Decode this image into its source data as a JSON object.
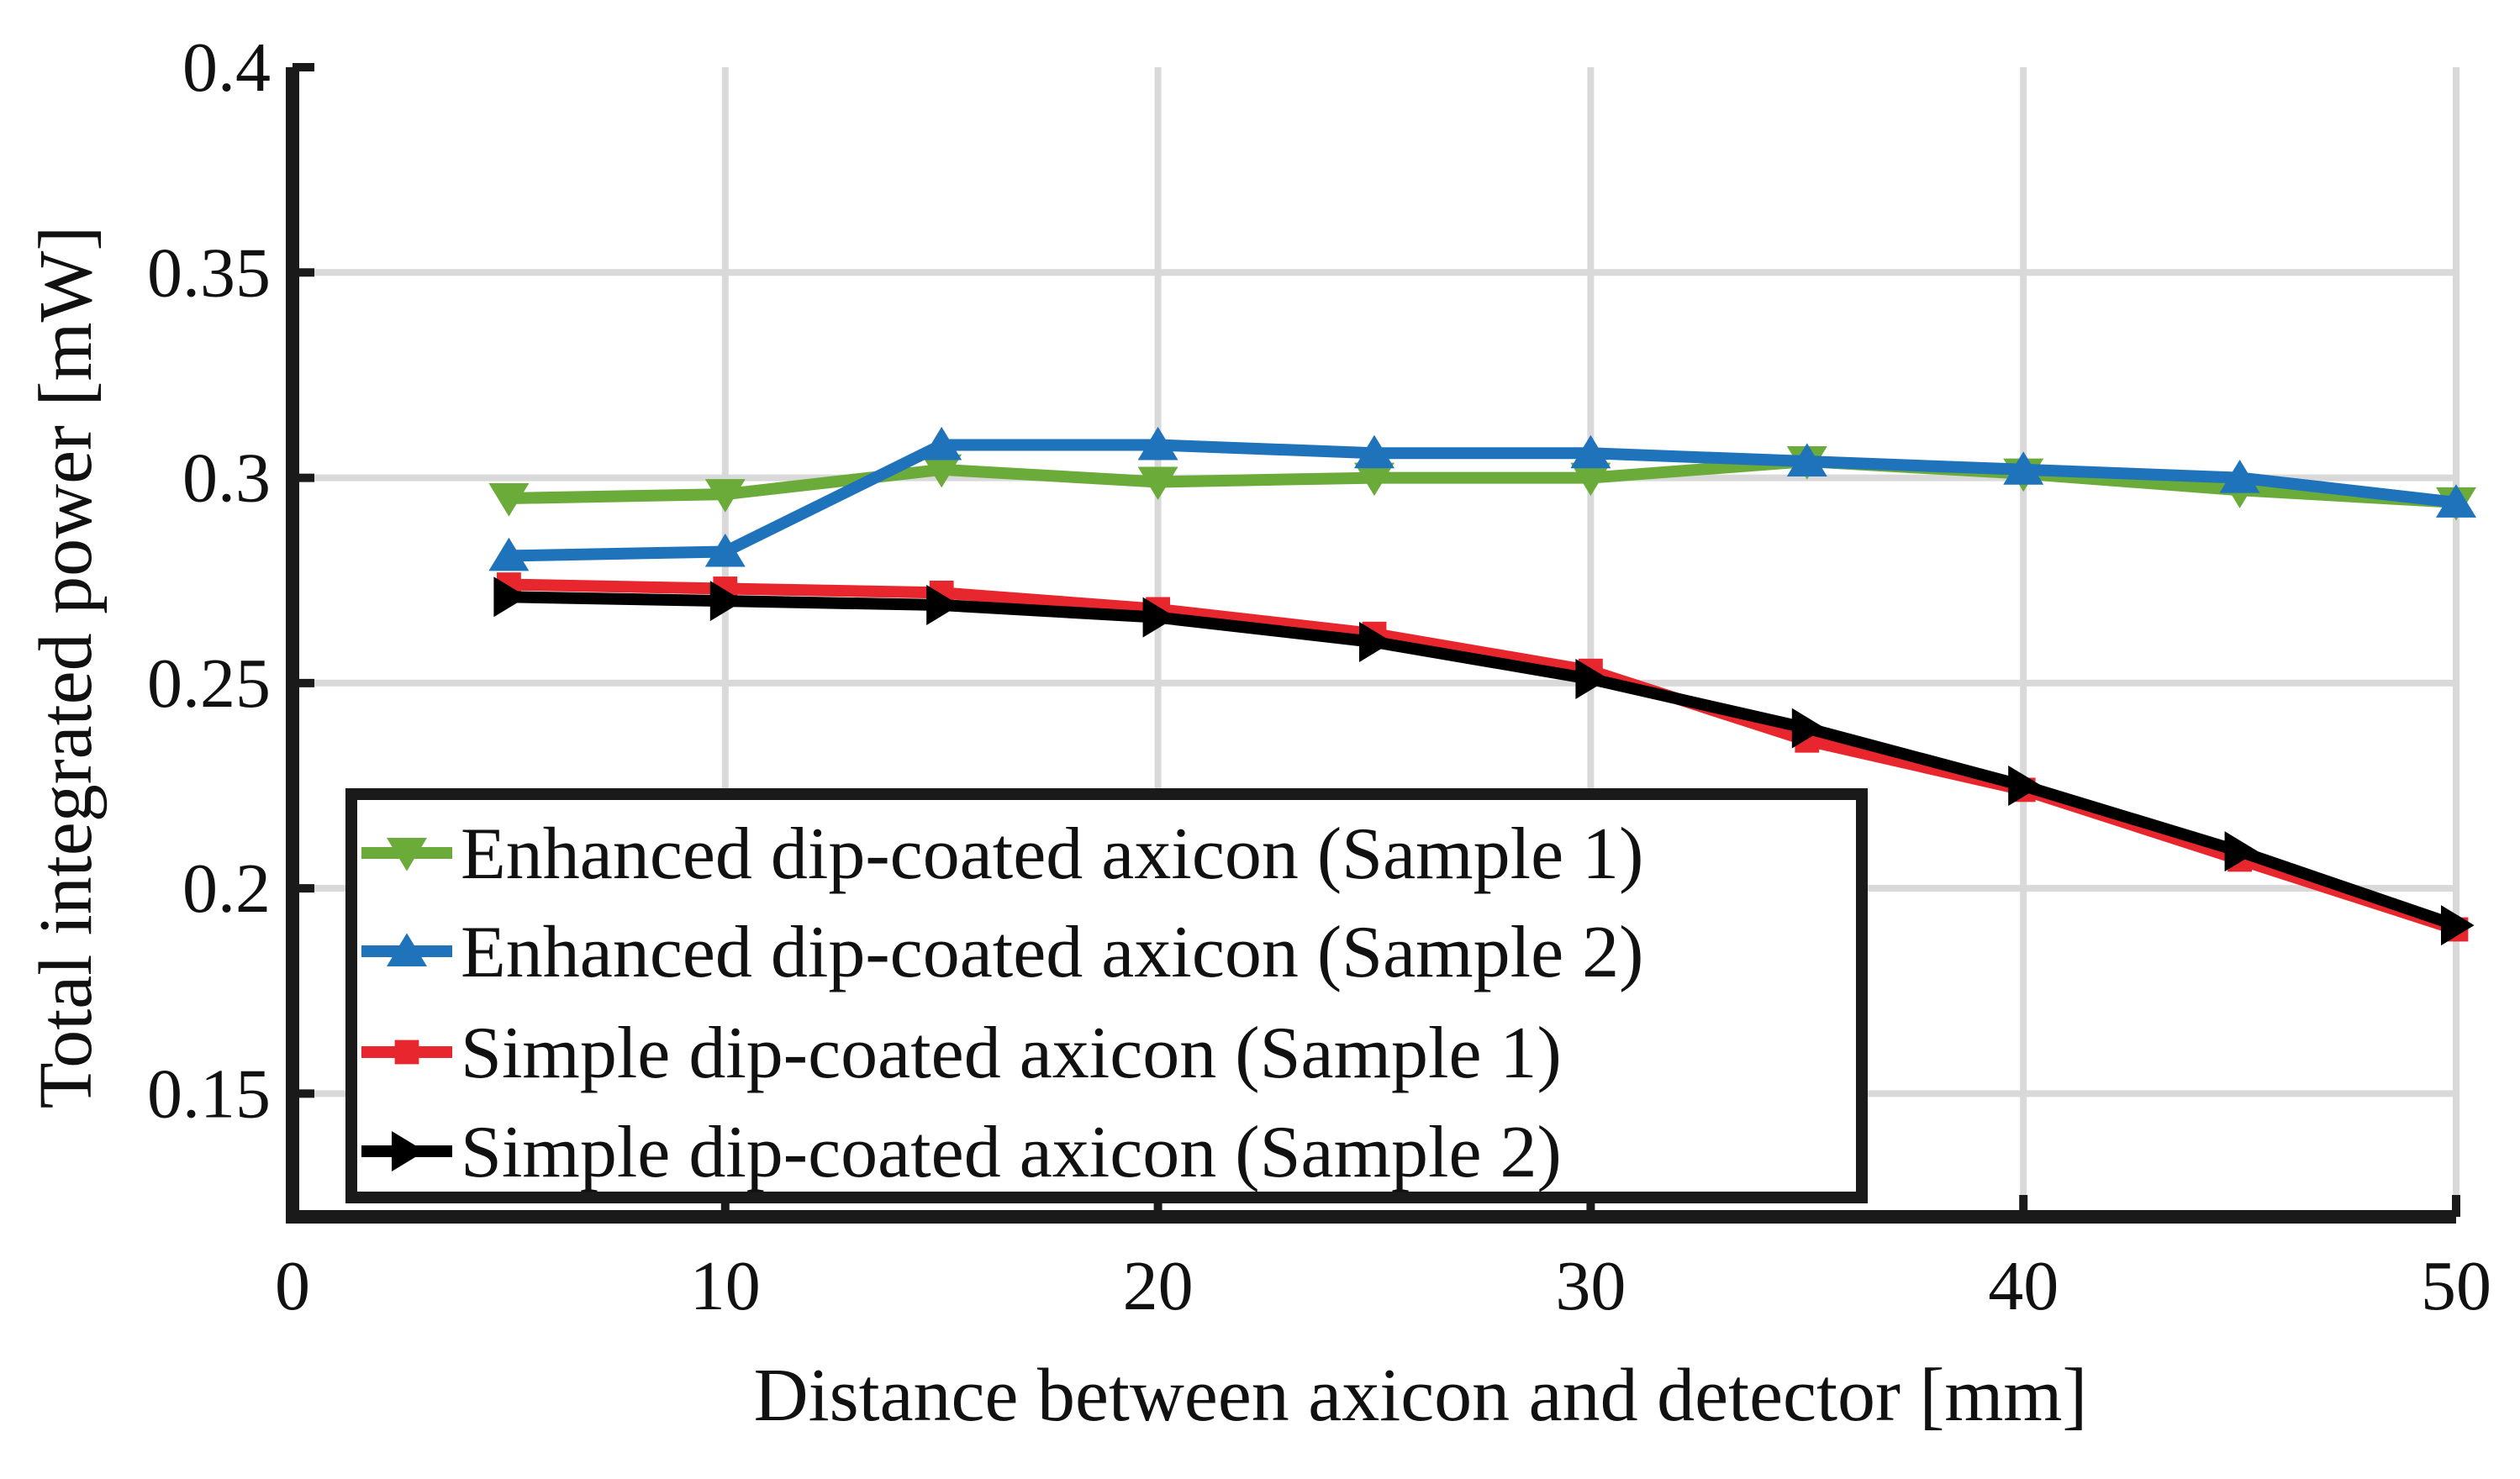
{
  "chart_data": {
    "type": "line",
    "title": "",
    "xlabel": "Distance between axicon and detector [mm]",
    "ylabel": "Total integrated power [mW]",
    "xlim": [
      0,
      50
    ],
    "ylim": [
      0.12,
      0.4
    ],
    "x_ticks": [
      0,
      10,
      20,
      30,
      40,
      50
    ],
    "x_tick_labels": [
      "0",
      "10",
      "20",
      "30",
      "40",
      "50"
    ],
    "y_ticks": [
      0.15,
      0.2,
      0.25,
      0.3,
      0.35,
      0.4
    ],
    "y_tick_labels": [
      "0.15",
      "0.2",
      "0.25",
      "0.3",
      "0.35",
      "0.4"
    ],
    "grid": true,
    "legend_position": "bottom-left",
    "x": [
      5,
      10,
      15,
      20,
      25,
      30,
      35,
      40,
      45,
      50
    ],
    "series": [
      {
        "name": "Enhanced dip-coated axicon (Sample 1)",
        "color": "#6aab3a",
        "marker": "triangle-down",
        "values": [
          0.295,
          0.296,
          0.302,
          0.299,
          0.3,
          0.3,
          0.304,
          0.301,
          0.297,
          0.294
        ]
      },
      {
        "name": "Enhanced dip-coated axicon (Sample 2)",
        "color": "#1f73bb",
        "marker": "triangle-up",
        "values": [
          0.281,
          0.282,
          0.308,
          0.308,
          0.306,
          0.306,
          0.304,
          0.302,
          0.3,
          0.294
        ]
      },
      {
        "name": "Simple dip-coated axicon (Sample 1)",
        "color": "#e8262d",
        "marker": "square",
        "values": [
          0.274,
          0.273,
          0.272,
          0.268,
          0.262,
          0.253,
          0.236,
          0.224,
          0.207,
          0.19
        ]
      },
      {
        "name": "Simple dip-coated axicon (Sample 2)",
        "color": "#000000",
        "marker": "triangle-right",
        "values": [
          0.271,
          0.27,
          0.269,
          0.266,
          0.26,
          0.251,
          0.239,
          0.225,
          0.209,
          0.191
        ]
      }
    ]
  }
}
